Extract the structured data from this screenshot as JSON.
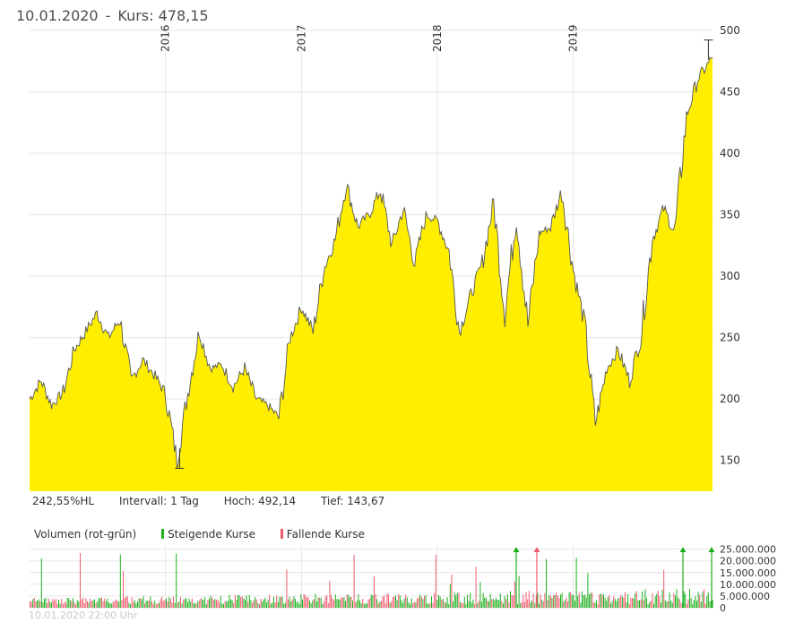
{
  "header": {
    "date": "10.01.2020",
    "separator": "-",
    "price_label": "Kurs: 478,15"
  },
  "stats": {
    "performance": "242,55%HL",
    "interval": "Intervall: 1 Tag",
    "high": "Hoch:  492,14",
    "low": "Tief:  143,67"
  },
  "volume_legend": {
    "title": "Volumen (rot-grün)",
    "rising": "Steigende Kurse",
    "falling": "Fallende Kurse",
    "rising_color": "#1db01d",
    "falling_color": "#ef5a6e"
  },
  "watermark": "10.01.2020 22:00 Uhr",
  "chart_data": [
    {
      "type": "area",
      "x_tick_labels": [
        "2016",
        "2017",
        "2018",
        "2019"
      ],
      "y_ticks": [
        150,
        200,
        250,
        300,
        350,
        400,
        450,
        500
      ],
      "y_tick_labels": [
        "150",
        "200",
        "250",
        "300",
        "350",
        "400",
        "450",
        "500"
      ],
      "ylim": [
        125,
        505
      ],
      "x_range": [
        "2015-01",
        "2020-01-10"
      ],
      "fill_color": "#ffee00",
      "line_color": "#555555",
      "grid": true,
      "high_value": 492.14,
      "low_value": 143.67,
      "series": [
        {
          "x": [
            "2015-01",
            "2015-02",
            "2015-03",
            "2015-04",
            "2015-05",
            "2015-06",
            "2015-07",
            "2015-08",
            "2015-09",
            "2015-10",
            "2015-11",
            "2015-12",
            "2016-01",
            "2016-02",
            "2016-03",
            "2016-04",
            "2016-05",
            "2016-06",
            "2016-07",
            "2016-08",
            "2016-09",
            "2016-10",
            "2016-11",
            "2016-12",
            "2017-01",
            "2017-02",
            "2017-03",
            "2017-04",
            "2017-05",
            "2017-06",
            "2017-07",
            "2017-08",
            "2017-09",
            "2017-10",
            "2017-11",
            "2017-12",
            "2018-01",
            "2018-02",
            "2018-03",
            "2018-04",
            "2018-05",
            "2018-06",
            "2018-07",
            "2018-08",
            "2018-09",
            "2018-10",
            "2018-11",
            "2018-12",
            "2019-01",
            "2019-02",
            "2019-03",
            "2019-04",
            "2019-05",
            "2019-06",
            "2019-07",
            "2019-08",
            "2019-09",
            "2019-10",
            "2019-11",
            "2019-12",
            "2020-01-10"
          ],
          "values": [
            200,
            215,
            195,
            205,
            240,
            255,
            270,
            250,
            265,
            215,
            232,
            220,
            205,
            150,
            205,
            255,
            225,
            228,
            210,
            225,
            200,
            195,
            185,
            250,
            275,
            255,
            305,
            330,
            375,
            340,
            350,
            370,
            325,
            355,
            310,
            350,
            345,
            320,
            255,
            285,
            310,
            360,
            270,
            350,
            260,
            335,
            340,
            370,
            305,
            260,
            180,
            225,
            240,
            215,
            250,
            330,
            355,
            335,
            430,
            460,
            478
          ]
        }
      ]
    },
    {
      "type": "bar",
      "y_ticks": [
        0,
        5000000,
        10000000,
        15000000,
        20000000,
        25000000
      ],
      "y_tick_labels": [
        "0",
        "5.000.000",
        "10.000.000",
        "15.000.000",
        "20.000.000",
        "25.000.000"
      ],
      "ylim": [
        0,
        26000000
      ],
      "series": [
        {
          "name": "Steigende Kurse",
          "color": "#1db01d"
        },
        {
          "name": "Fallende Kurse",
          "color": "#ef5a6e"
        }
      ]
    }
  ]
}
